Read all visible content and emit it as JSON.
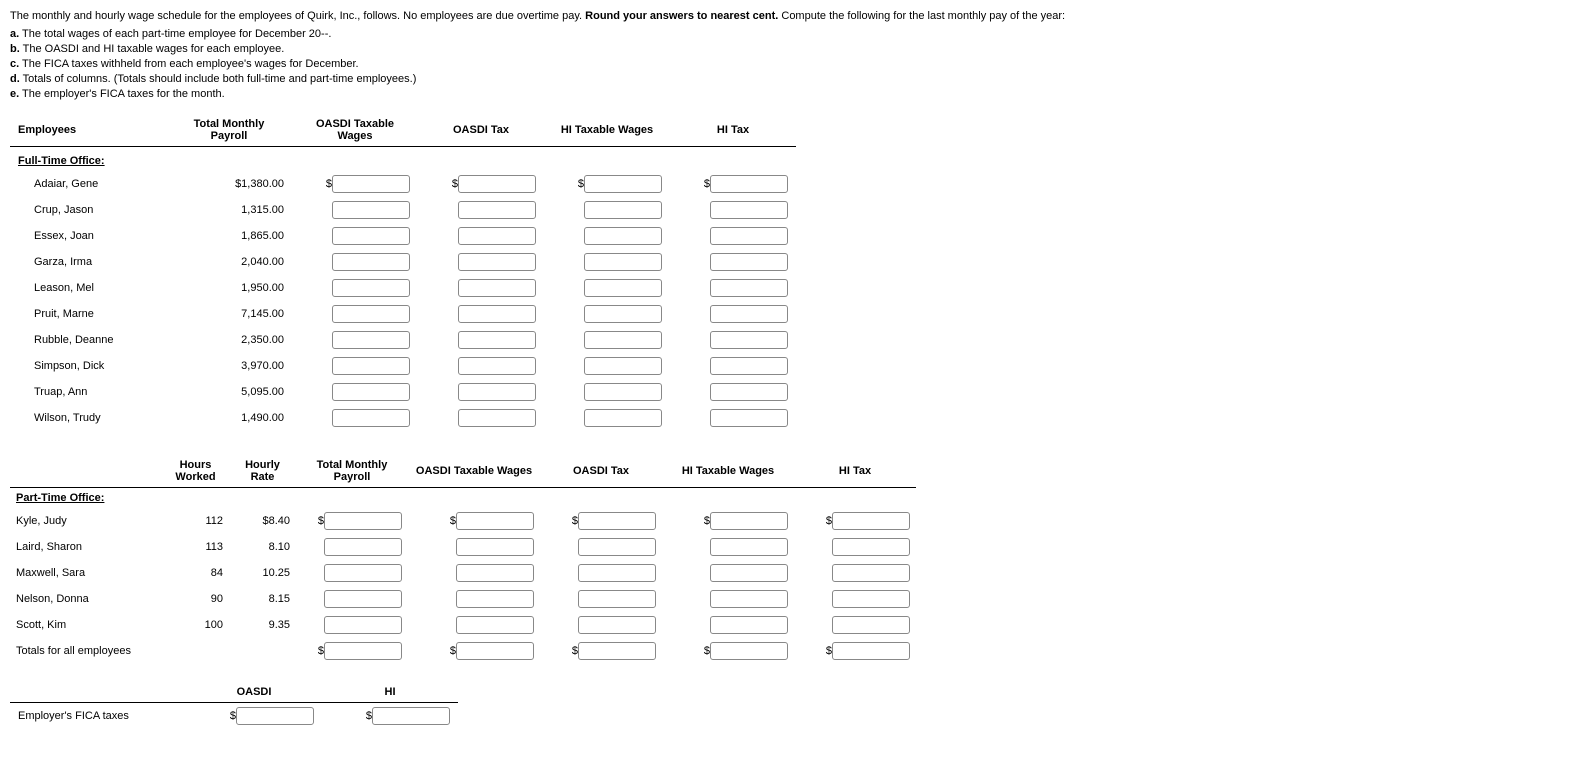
{
  "intro": "The monthly and hourly wage schedule for the employees of Quirk, Inc., follows. No employees are due overtime pay. ",
  "intro_bold": "Round your answers to nearest cent.",
  "intro_tail": " Compute the following for the last monthly pay of the year:",
  "items": {
    "a": {
      "letter": "a.",
      "text": " The total wages of each part-time employee for December 20--."
    },
    "b": {
      "letter": "b.",
      "text": " The OASDI and HI taxable wages for each employee."
    },
    "c": {
      "letter": "c.",
      "text": " The FICA taxes withheld from each employee's wages for December."
    },
    "d": {
      "letter": "d.",
      "text": " Totals of columns. (Totals should include both full-time and part-time employees.)"
    },
    "e": {
      "letter": "e.",
      "text": " The employer's FICA taxes for the month."
    }
  },
  "ft_headers": {
    "employees": "Employees",
    "payroll": "Total Monthly Payroll",
    "oasdi_wages": "OASDI Taxable Wages",
    "oasdi_tax": "OASDI Tax",
    "hi_wages": "HI Taxable Wages",
    "hi_tax": "HI Tax"
  },
  "ft_section": "Full-Time Office:",
  "ft_rows": [
    {
      "name": "Adaiar, Gene",
      "payroll": "$1,380.00",
      "dollar": true
    },
    {
      "name": "Crup, Jason",
      "payroll": "1,315.00",
      "dollar": false
    },
    {
      "name": "Essex, Joan",
      "payroll": "1,865.00",
      "dollar": false
    },
    {
      "name": "Garza, Irma",
      "payroll": "2,040.00",
      "dollar": false
    },
    {
      "name": "Leason, Mel",
      "payroll": "1,950.00",
      "dollar": false
    },
    {
      "name": "Pruit, Marne",
      "payroll": "7,145.00",
      "dollar": false
    },
    {
      "name": "Rubble, Deanne",
      "payroll": "2,350.00",
      "dollar": false
    },
    {
      "name": "Simpson, Dick",
      "payroll": "3,970.00",
      "dollar": false
    },
    {
      "name": "Truap, Ann",
      "payroll": "5,095.00",
      "dollar": false
    },
    {
      "name": "Wilson, Trudy",
      "payroll": "1,490.00",
      "dollar": false
    }
  ],
  "pt_headers": {
    "hours": "Hours Worked",
    "rate": "Hourly Rate",
    "payroll": "Total Monthly Payroll",
    "oasdi_wages": "OASDI Taxable Wages",
    "oasdi_tax": "OASDI Tax",
    "hi_wages": "HI Taxable Wages",
    "hi_tax": "HI Tax"
  },
  "pt_section": "Part-Time Office:",
  "pt_rows": [
    {
      "name": "Kyle, Judy",
      "hours": "112",
      "rate": "$8.40",
      "dollar": true
    },
    {
      "name": "Laird, Sharon",
      "hours": "113",
      "rate": "8.10",
      "dollar": false
    },
    {
      "name": "Maxwell, Sara",
      "hours": "84",
      "rate": "10.25",
      "dollar": false
    },
    {
      "name": "Nelson, Donna",
      "hours": "90",
      "rate": "8.15",
      "dollar": false
    },
    {
      "name": "Scott, Kim",
      "hours": "100",
      "rate": "9.35",
      "dollar": false
    }
  ],
  "totals_label": "Totals for all employees",
  "fica": {
    "oasdi": "OASDI",
    "hi": "HI",
    "label": "Employer's FICA taxes"
  }
}
